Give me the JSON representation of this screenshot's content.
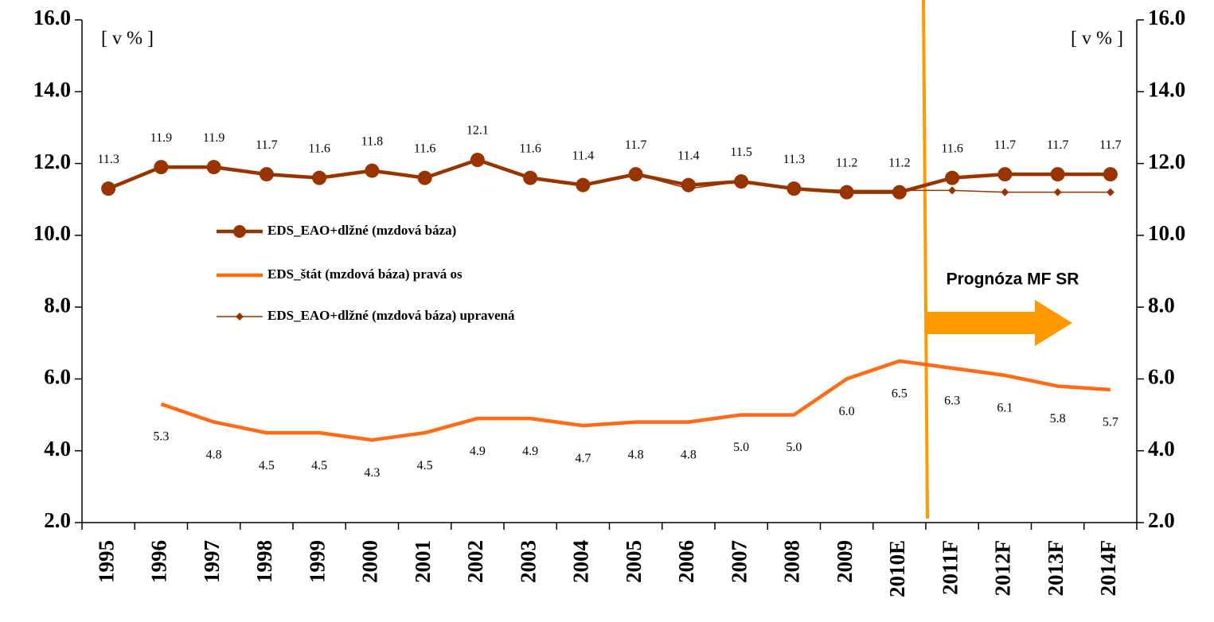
{
  "chart_data": {
    "type": "line",
    "categories": [
      "1995",
      "1996",
      "1997",
      "1998",
      "1999",
      "2000",
      "2001",
      "2002",
      "2003",
      "2004",
      "2005",
      "2006",
      "2007",
      "2008",
      "2009",
      "2010E",
      "2011F",
      "2012F",
      "2013F",
      "2014F"
    ],
    "series": [
      {
        "name": "EDS_EAO+dlžné (mzdová báza)",
        "color": "#993300",
        "marker": "circle",
        "values": [
          11.3,
          11.9,
          11.9,
          11.7,
          11.6,
          11.8,
          11.6,
          12.1,
          11.6,
          11.4,
          11.7,
          11.4,
          11.5,
          11.3,
          11.2,
          11.2,
          11.6,
          11.7,
          11.7,
          11.7
        ]
      },
      {
        "name": "EDS_štát (mzdová báza) pravá os",
        "color": "#ff6a13",
        "axis": "y2",
        "marker": "none",
        "values": [
          null,
          5.3,
          4.8,
          4.5,
          4.5,
          4.3,
          4.5,
          4.9,
          4.9,
          4.7,
          4.8,
          4.8,
          5.0,
          5.0,
          6.0,
          6.5,
          6.3,
          6.1,
          5.8,
          5.7
        ],
        "value_labels": [
          null,
          "5.3",
          "4.8",
          "4.5",
          "4.5",
          "4.3",
          "4.5",
          "4.9",
          "4.9",
          "4.7",
          "4.8",
          "4.8",
          "5.0",
          "5.0",
          "6.0",
          "6.5",
          "6.3",
          "6.1",
          "5.8",
          "5.7"
        ]
      },
      {
        "name": "EDS_EAO+dlžné (mzdová báza) upravená",
        "color": "#993300",
        "marker": "diamond",
        "values": [
          11.3,
          11.9,
          11.9,
          11.7,
          11.6,
          11.8,
          11.6,
          12.1,
          11.6,
          11.4,
          11.7,
          11.3,
          11.5,
          11.3,
          11.25,
          11.25,
          11.25,
          11.2,
          11.2,
          11.2
        ]
      }
    ],
    "ylim": [
      2,
      16
    ],
    "yticks": [
      {
        "value": 2,
        "label": "2.0"
      },
      {
        "value": 4,
        "label": "4.0"
      },
      {
        "value": 6,
        "label": "6.0"
      },
      {
        "value": 8,
        "label": "8.0"
      },
      {
        "value": 10,
        "label": "10.0"
      },
      {
        "value": 12,
        "label": "12.0"
      },
      {
        "value": 14,
        "label": "14.0"
      },
      {
        "value": 16,
        "label": "16.0"
      }
    ],
    "y2lim": [
      2,
      16
    ],
    "y2ticks": [
      {
        "value": 2,
        "label": "2.0"
      },
      {
        "value": 4,
        "label": "4.0"
      },
      {
        "value": 6,
        "label": "6.0"
      },
      {
        "value": 8,
        "label": "8.0"
      },
      {
        "value": 10,
        "label": "10.0"
      },
      {
        "value": 12,
        "label": "12.0"
      },
      {
        "value": 14,
        "label": "14.0"
      },
      {
        "value": 16,
        "label": "16.0"
      }
    ],
    "y_unit": "[ v % ]",
    "y2_unit": "[ v % ]",
    "annotation": "Prognóza MF SR"
  }
}
